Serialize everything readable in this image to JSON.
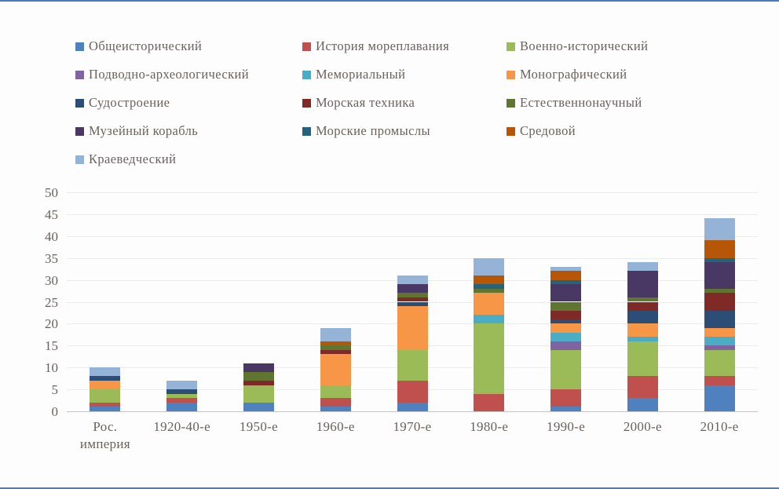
{
  "frame": {
    "border_color": "#4a7abf",
    "background": "#fdfdfd",
    "text_color": "#6a625c"
  },
  "chart_data": {
    "type": "bar",
    "stacked": true,
    "title": "",
    "xlabel": "",
    "ylabel": "",
    "ylim": [
      0,
      50
    ],
    "ytick_step": 5,
    "yticks": [
      0,
      5,
      10,
      15,
      20,
      25,
      30,
      35,
      40,
      45,
      50
    ],
    "grid": true,
    "legend_position": "top-left",
    "categories": [
      {
        "label": "Рос. империя",
        "lines": [
          "Рос.",
          "империя"
        ]
      },
      {
        "label": "1920-40-е",
        "lines": [
          "1920-40-е"
        ]
      },
      {
        "label": "1950-е",
        "lines": [
          "1950-е"
        ]
      },
      {
        "label": "1960-е",
        "lines": [
          "1960-е"
        ]
      },
      {
        "label": "1970-е",
        "lines": [
          "1970-е"
        ]
      },
      {
        "label": "1980-е",
        "lines": [
          "1980-е"
        ]
      },
      {
        "label": "1990-е",
        "lines": [
          "1990-е"
        ]
      },
      {
        "label": "2000-е",
        "lines": [
          "2000-е"
        ]
      },
      {
        "label": "2010-е",
        "lines": [
          "2010-е"
        ]
      }
    ],
    "totals": [
      10,
      7,
      11,
      19,
      31,
      35,
      33,
      34,
      44
    ],
    "series": [
      {
        "name": "Общеисторический",
        "color": "#4e81bd",
        "values": [
          1,
          2,
          2,
          1,
          2,
          0,
          1,
          3,
          6
        ]
      },
      {
        "name": "История мореплавания",
        "color": "#c0504d",
        "values": [
          1,
          1,
          0,
          2,
          5,
          4,
          4,
          5,
          2
        ]
      },
      {
        "name": "Военно-исторический",
        "color": "#9bbb59",
        "values": [
          3,
          1,
          4,
          3,
          7,
          16,
          9,
          8,
          6
        ]
      },
      {
        "name": "Подводно-археологический",
        "color": "#8064a2",
        "values": [
          0,
          0,
          0,
          0,
          0,
          0,
          2,
          0,
          1
        ]
      },
      {
        "name": "Мемориальный",
        "color": "#4bacc6",
        "values": [
          0,
          0,
          0,
          0,
          0,
          2,
          2,
          1,
          2
        ]
      },
      {
        "name": "Монографический",
        "color": "#f79646",
        "values": [
          2,
          0,
          0,
          7,
          10,
          5,
          2,
          3,
          2
        ]
      },
      {
        "name": "Судостроение",
        "color": "#2c4d75",
        "values": [
          1,
          1,
          0,
          0,
          1,
          0,
          1,
          3,
          4
        ]
      },
      {
        "name": "Морская техника",
        "color": "#7f2a27",
        "values": [
          0,
          0,
          1,
          1,
          1,
          0,
          2,
          2,
          4
        ]
      },
      {
        "name": "Естественнонаучный",
        "color": "#5f7530",
        "values": [
          0,
          0,
          2,
          1,
          1,
          1,
          2,
          1,
          1
        ]
      },
      {
        "name": "Музейный корабль",
        "color": "#493764",
        "values": [
          0,
          0,
          2,
          0,
          2,
          0,
          4,
          6,
          6
        ]
      },
      {
        "name": "Морские промыслы",
        "color": "#25637a",
        "values": [
          0,
          0,
          0,
          0,
          0,
          1,
          1,
          0,
          1
        ]
      },
      {
        "name": "Средовой",
        "color": "#b65708",
        "values": [
          0,
          0,
          0,
          1,
          0,
          2,
          2,
          0,
          4
        ]
      },
      {
        "name": "Краеведческий",
        "color": "#95b3d7",
        "values": [
          2,
          2,
          0,
          3,
          2,
          4,
          1,
          2,
          5
        ]
      }
    ]
  }
}
